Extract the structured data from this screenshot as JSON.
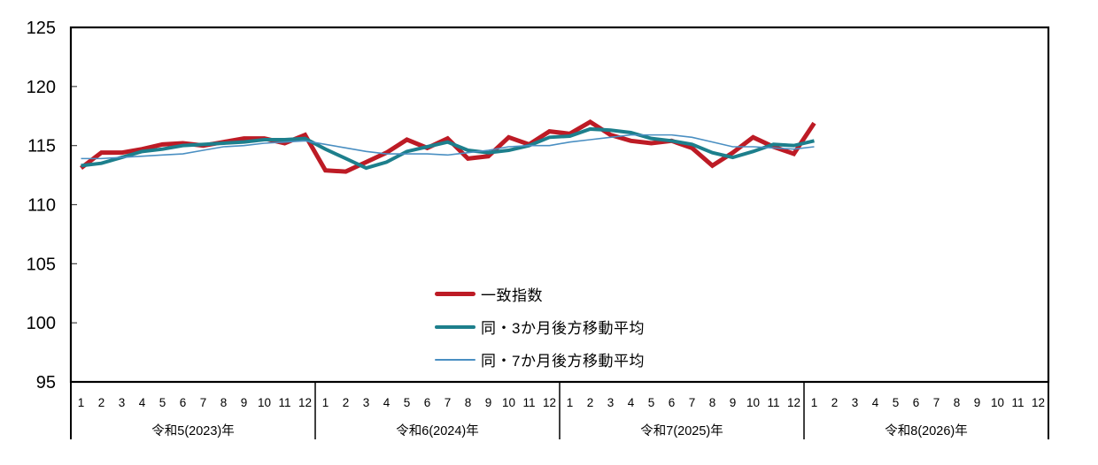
{
  "chart_data": {
    "type": "line",
    "title": "",
    "xlabel": "",
    "ylabel": "",
    "ylim": [
      95,
      125
    ],
    "yticks": [
      95,
      100,
      105,
      110,
      115,
      120,
      125
    ],
    "grid": false,
    "x_month_labels": [
      "1",
      "2",
      "3",
      "4",
      "5",
      "6",
      "7",
      "8",
      "9",
      "10",
      "11",
      "12"
    ],
    "year_groups": [
      {
        "label": "令和5(2023)年"
      },
      {
        "label": "令和6(2024)年"
      },
      {
        "label": "令和7(2025)年"
      },
      {
        "label": "令和8(2026)年"
      }
    ],
    "legend_position": "inside-bottom-center",
    "series": [
      {
        "name": "一致指数",
        "color": "#bd1b25",
        "stroke_width": 5,
        "values": [
          113.1,
          114.4,
          114.4,
          114.7,
          115.1,
          115.2,
          115.0,
          115.3,
          115.6,
          115.6,
          115.2,
          115.9,
          112.9,
          112.8,
          113.6,
          114.4,
          115.5,
          114.8,
          115.6,
          113.9,
          114.1,
          115.7,
          115.1,
          116.2,
          116.0,
          117.0,
          115.9,
          115.4,
          115.2,
          115.4,
          114.8,
          113.3,
          114.4,
          115.7,
          114.9,
          114.3,
          116.9
        ]
      },
      {
        "name": "同・3か月後方移動平均",
        "color": "#1d7f8c",
        "stroke_width": 4,
        "values": [
          113.3,
          113.5,
          114.0,
          114.5,
          114.7,
          115.0,
          115.1,
          115.2,
          115.3,
          115.5,
          115.5,
          115.6,
          114.7,
          113.9,
          113.1,
          113.6,
          114.5,
          114.9,
          115.3,
          114.6,
          114.4,
          114.6,
          115.0,
          115.7,
          115.8,
          116.4,
          116.3,
          116.1,
          115.6,
          115.4,
          115.1,
          114.4,
          114.0,
          114.5,
          115.1,
          115.0,
          115.4
        ]
      },
      {
        "name": "同・7か月後方移動平均",
        "color": "#4a8fc2",
        "stroke_width": 1.6,
        "values": [
          113.9,
          113.9,
          114.0,
          114.1,
          114.2,
          114.3,
          114.6,
          114.9,
          115.0,
          115.2,
          115.3,
          115.4,
          115.1,
          114.8,
          114.5,
          114.3,
          114.3,
          114.3,
          114.2,
          114.4,
          114.6,
          114.9,
          115.0,
          115.0,
          115.3,
          115.5,
          115.7,
          115.9,
          115.9,
          115.9,
          115.7,
          115.3,
          114.9,
          114.9,
          114.8,
          114.7,
          114.9
        ]
      }
    ]
  }
}
